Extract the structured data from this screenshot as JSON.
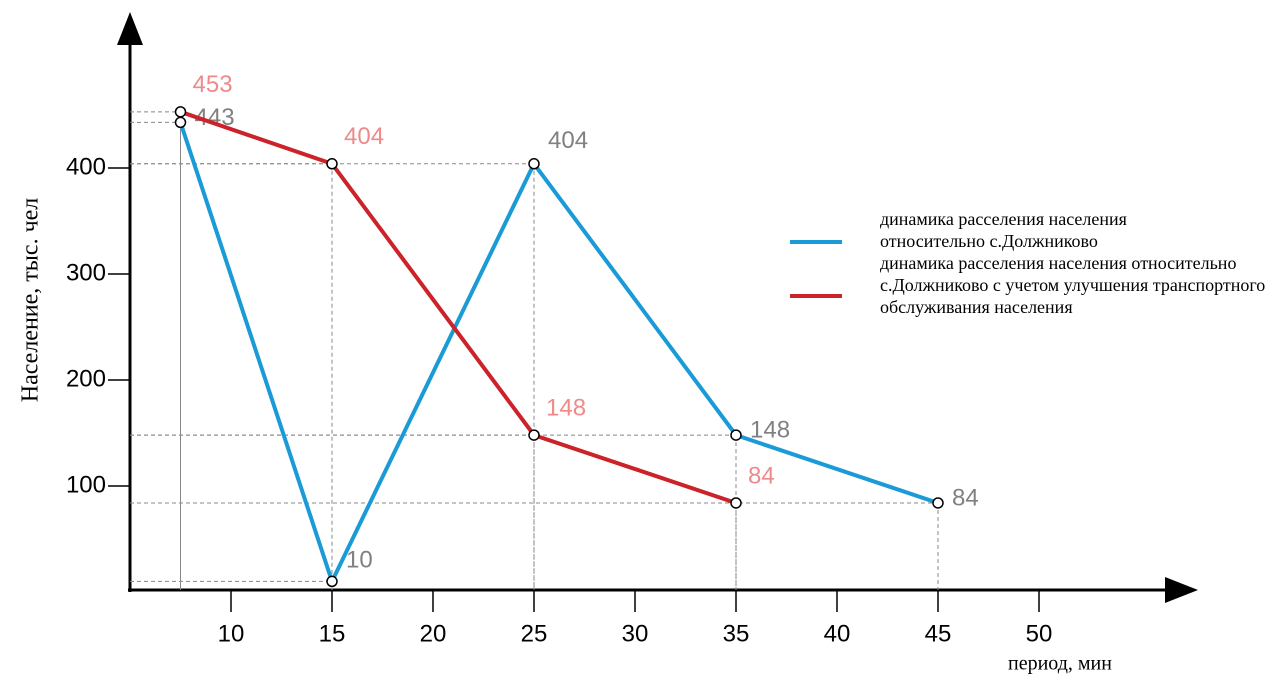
{
  "chart_data": {
    "type": "line",
    "x_label": "период, мин",
    "y_label": "Население, тыс. чел",
    "xlim": [
      5,
      55
    ],
    "xticks": [
      10,
      15,
      20,
      25,
      30,
      35,
      40,
      45,
      50
    ],
    "ylim": [
      0,
      500
    ],
    "yticks": [
      100,
      200,
      300,
      400
    ],
    "series": [
      {
        "name": "динамика  расселения населения относительно        с.Должниково",
        "color": "#1a9ad6",
        "label_color": "#808080",
        "x": [
          7.5,
          15,
          25,
          35,
          45
        ],
        "values": [
          443,
          10,
          404,
          148,
          84
        ]
      },
      {
        "name": "динамика расселения  населения относительно      с.Должниково  с учетом улучшения транспортного обслуживания  населения",
        "color": "#cc2229",
        "label_color": "#ee8a8a",
        "x": [
          7.5,
          15,
          25,
          35
        ],
        "values": [
          453,
          404,
          148,
          84
        ]
      }
    ]
  }
}
